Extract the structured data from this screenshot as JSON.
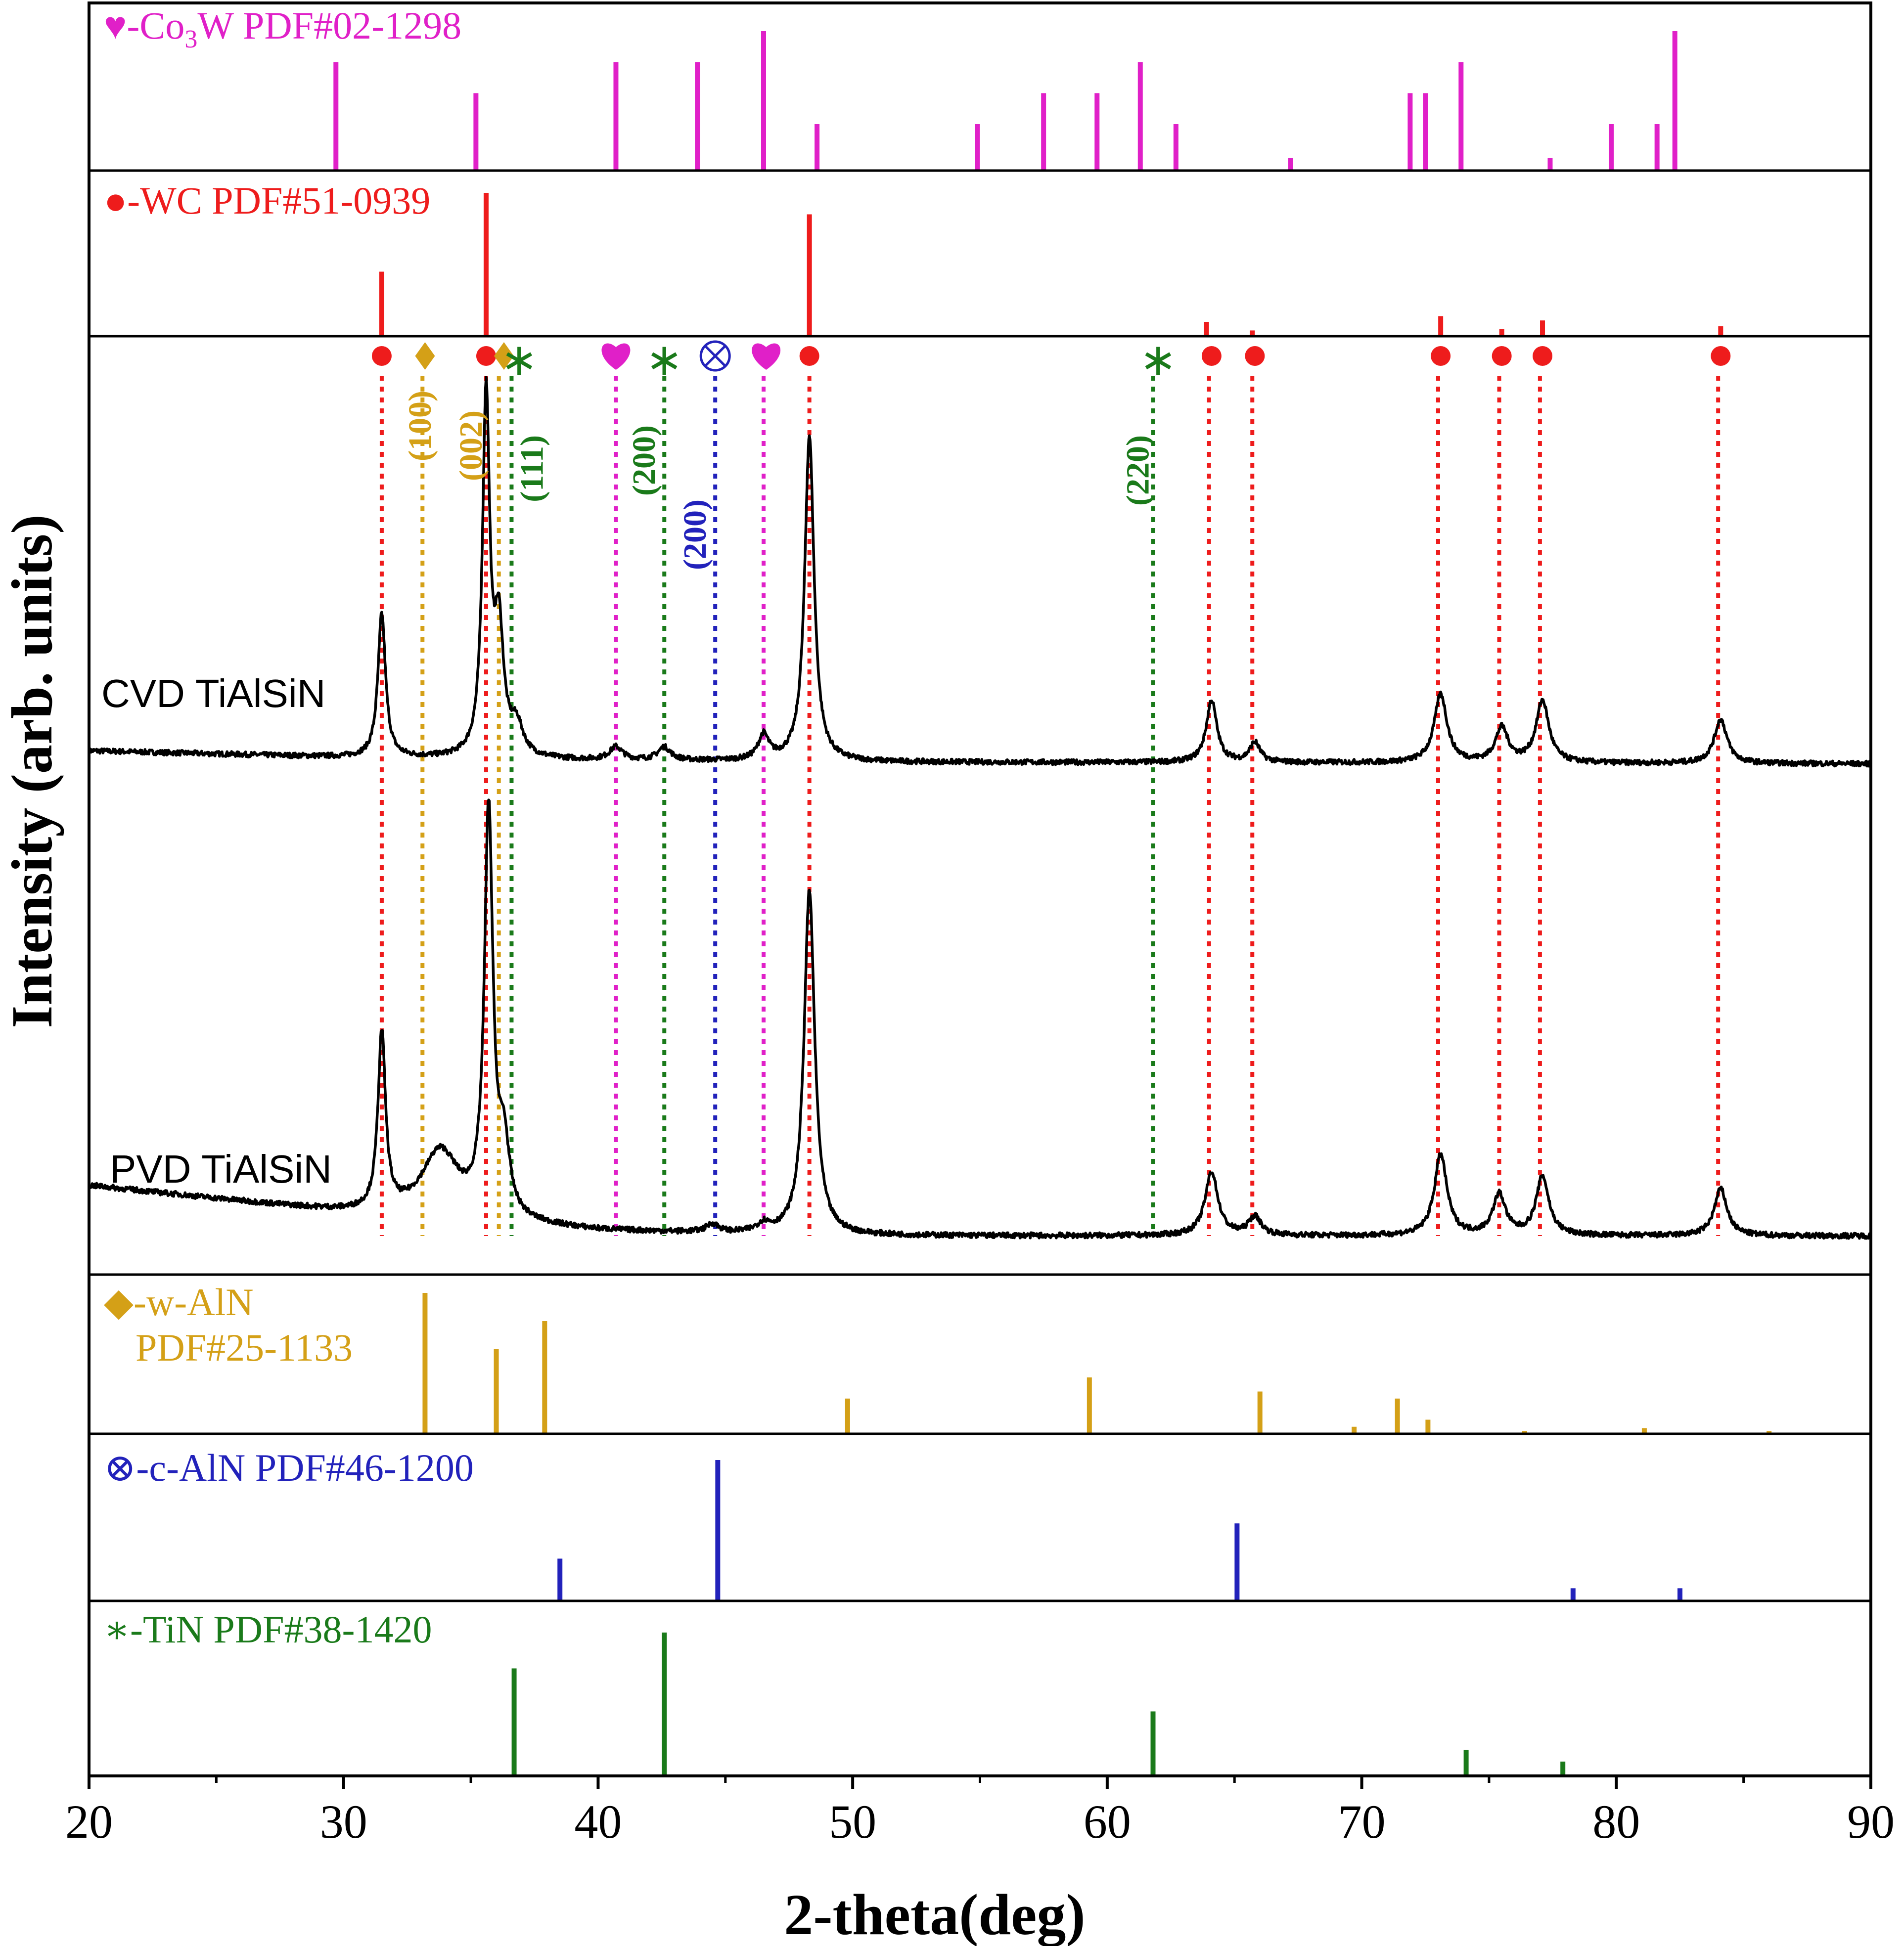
{
  "chart_data": {
    "type": "line",
    "xlabel": "2-theta(deg)",
    "ylabel": "Intensity (arb. units)",
    "xlim": [
      20,
      90
    ],
    "xticks": [
      20,
      30,
      40,
      50,
      60,
      70,
      80,
      90
    ],
    "colors": {
      "co3w": "#e020c8",
      "wc": "#ee1c1c",
      "aln_w": "#d4a017",
      "aln_c": "#2222bb",
      "tin": "#1a7a1a",
      "curve": "#000000",
      "axis": "#000000"
    },
    "reference_panels": [
      {
        "id": "co3w",
        "symbol": "♥",
        "label_prefix": "-Co",
        "label_sub": "3",
        "label_suffix": "W PDF#02-1298",
        "color": "#e020c8",
        "peaks": [
          [
            29.7,
            70
          ],
          [
            35.2,
            50
          ],
          [
            40.7,
            70
          ],
          [
            43.9,
            70
          ],
          [
            46.5,
            90
          ],
          [
            48.6,
            30
          ],
          [
            54.9,
            30
          ],
          [
            57.5,
            50
          ],
          [
            59.6,
            50
          ],
          [
            61.3,
            70
          ],
          [
            62.7,
            30
          ],
          [
            67.2,
            8
          ],
          [
            71.9,
            50
          ],
          [
            72.5,
            50
          ],
          [
            73.9,
            70
          ],
          [
            77.4,
            8
          ],
          [
            79.8,
            30
          ],
          [
            81.6,
            30
          ],
          [
            82.3,
            90
          ]
        ]
      },
      {
        "id": "wc",
        "symbol": "●",
        "label": "-WC PDF#51-0939",
        "color": "#ee1c1c",
        "peaks": [
          [
            31.5,
            45
          ],
          [
            35.6,
            100
          ],
          [
            48.3,
            85
          ],
          [
            63.9,
            10
          ],
          [
            65.7,
            4
          ],
          [
            73.1,
            14
          ],
          [
            75.5,
            5
          ],
          [
            77.1,
            11
          ],
          [
            84.1,
            7
          ]
        ]
      },
      {
        "id": "aln_w",
        "symbol": "◆",
        "label_line1": "-w-AlN",
        "label_line2": "PDF#25-1133",
        "color": "#d4a017",
        "peaks": [
          [
            33.2,
            100
          ],
          [
            36.0,
            60
          ],
          [
            37.9,
            80
          ],
          [
            49.8,
            25
          ],
          [
            59.3,
            40
          ],
          [
            66.0,
            30
          ],
          [
            69.7,
            5
          ],
          [
            71.4,
            25
          ],
          [
            72.6,
            10
          ],
          [
            76.4,
            2
          ],
          [
            81.1,
            4
          ],
          [
            86.0,
            2
          ]
        ]
      },
      {
        "id": "aln_c",
        "symbol": "⊗",
        "label": "-c-AlN PDF#46-1200",
        "color": "#2222bb",
        "peaks": [
          [
            38.5,
            30
          ],
          [
            44.7,
            100
          ],
          [
            65.1,
            55
          ],
          [
            78.3,
            9
          ],
          [
            82.5,
            9
          ]
        ]
      },
      {
        "id": "tin",
        "symbol": "∗",
        "label": "-TiN PDF#38-1420",
        "color": "#1a7a1a",
        "peaks": [
          [
            36.7,
            75
          ],
          [
            42.6,
            100
          ],
          [
            61.8,
            45
          ],
          [
            74.1,
            18
          ],
          [
            77.9,
            10
          ]
        ]
      }
    ],
    "series": [
      {
        "name": "CVD TiAlSiN",
        "baseline": [
          [
            20,
            8
          ],
          [
            30,
            4
          ],
          [
            40,
            2
          ],
          [
            50,
            1
          ],
          [
            60,
            0.8
          ],
          [
            70,
            0.6
          ],
          [
            80,
            0.3
          ],
          [
            90,
            0
          ]
        ],
        "peaks": [
          [
            31.5,
            88,
            0.18
          ],
          [
            35.6,
            220,
            0.17
          ],
          [
            36.1,
            75,
            0.22
          ],
          [
            36.8,
            18,
            0.3
          ],
          [
            40.7,
            8,
            0.3
          ],
          [
            42.6,
            8,
            0.3
          ],
          [
            46.5,
            15,
            0.25
          ],
          [
            48.3,
            200,
            0.22
          ],
          [
            64.1,
            38,
            0.25
          ],
          [
            65.8,
            12,
            0.25
          ],
          [
            73.1,
            42,
            0.3
          ],
          [
            75.5,
            21,
            0.3
          ],
          [
            77.1,
            38,
            0.3
          ],
          [
            84.1,
            27,
            0.3
          ]
        ]
      },
      {
        "name": "PVD TiAlSiN",
        "baseline": [
          [
            20,
            30
          ],
          [
            25,
            22
          ],
          [
            30,
            14
          ],
          [
            35,
            8
          ],
          [
            40,
            3
          ],
          [
            45,
            1
          ],
          [
            50,
            0
          ],
          [
            90,
            0
          ]
        ],
        "peaks": [
          [
            31.5,
            105,
            0.18
          ],
          [
            33.8,
            40,
            0.9
          ],
          [
            35.7,
            240,
            0.2
          ],
          [
            36.3,
            40,
            0.25
          ],
          [
            44.5,
            5,
            0.3
          ],
          [
            46.5,
            5,
            0.3
          ],
          [
            48.3,
            205,
            0.25
          ],
          [
            64.1,
            38,
            0.3
          ],
          [
            65.8,
            11,
            0.3
          ],
          [
            73.1,
            48,
            0.3
          ],
          [
            75.4,
            24,
            0.3
          ],
          [
            77.1,
            35,
            0.3
          ],
          [
            84.1,
            28,
            0.3
          ]
        ]
      }
    ],
    "markers": [
      {
        "x": 31.5,
        "symbol": "●",
        "phase": "wc"
      },
      {
        "x": 33.2,
        "symbol": "◆",
        "phase": "aln_w"
      },
      {
        "x": 35.6,
        "symbol": "●",
        "phase": "wc"
      },
      {
        "x": 36.3,
        "symbol": "◆",
        "phase": "aln_w"
      },
      {
        "x": 36.9,
        "symbol": "∗",
        "phase": "tin"
      },
      {
        "x": 40.7,
        "symbol": "♥",
        "phase": "co3w"
      },
      {
        "x": 42.6,
        "symbol": "∗",
        "phase": "tin"
      },
      {
        "x": 44.6,
        "symbol": "⊗",
        "phase": "aln_c"
      },
      {
        "x": 46.6,
        "symbol": "♥",
        "phase": "co3w"
      },
      {
        "x": 48.3,
        "symbol": "●",
        "phase": "wc"
      },
      {
        "x": 62.0,
        "symbol": "∗",
        "phase": "tin"
      },
      {
        "x": 64.1,
        "symbol": "●",
        "phase": "wc"
      },
      {
        "x": 65.8,
        "symbol": "●",
        "phase": "wc"
      },
      {
        "x": 73.1,
        "symbol": "●",
        "phase": "wc"
      },
      {
        "x": 75.5,
        "symbol": "●",
        "phase": "wc"
      },
      {
        "x": 77.1,
        "symbol": "●",
        "phase": "wc"
      },
      {
        "x": 84.1,
        "symbol": "●",
        "phase": "wc"
      }
    ],
    "guide_lines": [
      {
        "x": 31.5,
        "phase": "wc"
      },
      {
        "x": 33.1,
        "phase": "aln_w"
      },
      {
        "x": 35.6,
        "phase": "wc"
      },
      {
        "x": 36.1,
        "phase": "aln_w"
      },
      {
        "x": 36.6,
        "phase": "tin"
      },
      {
        "x": 40.7,
        "phase": "co3w"
      },
      {
        "x": 42.6,
        "phase": "tin"
      },
      {
        "x": 44.6,
        "phase": "aln_c"
      },
      {
        "x": 46.5,
        "phase": "co3w"
      },
      {
        "x": 48.3,
        "phase": "wc"
      },
      {
        "x": 61.8,
        "phase": "tin"
      },
      {
        "x": 64.0,
        "phase": "wc"
      },
      {
        "x": 65.7,
        "phase": "wc"
      },
      {
        "x": 73.0,
        "phase": "wc"
      },
      {
        "x": 75.4,
        "phase": "wc"
      },
      {
        "x": 77.0,
        "phase": "wc"
      },
      {
        "x": 84.0,
        "phase": "wc"
      }
    ],
    "annotations": [
      {
        "text": "(100)",
        "x": 33.0,
        "phase": "aln_w"
      },
      {
        "text": "(002)",
        "x": 35.0,
        "phase": "aln_w"
      },
      {
        "text": "(111)",
        "x": 37.4,
        "phase": "tin"
      },
      {
        "text": "(200)",
        "x": 41.8,
        "phase": "tin"
      },
      {
        "text": "(200)",
        "x": 43.8,
        "phase": "aln_c"
      },
      {
        "text": "(220)",
        "x": 61.2,
        "phase": "tin"
      }
    ]
  }
}
